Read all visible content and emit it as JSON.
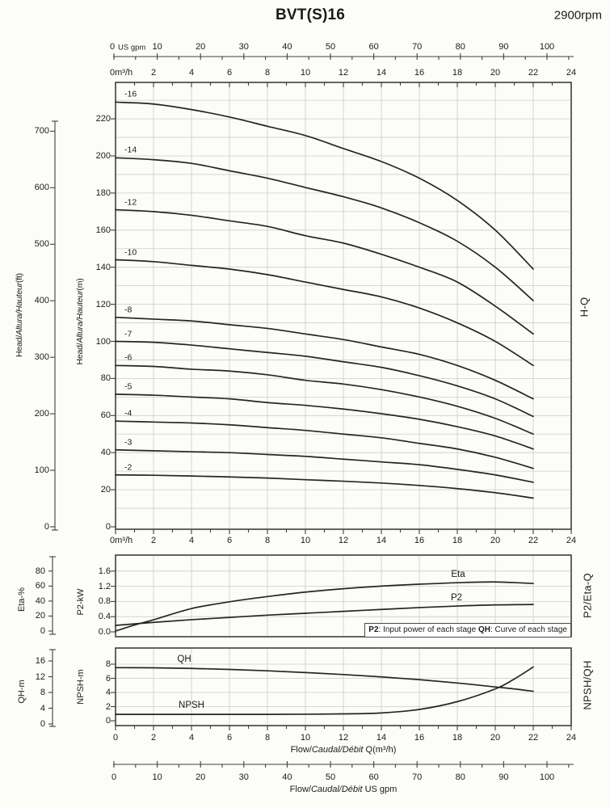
{
  "header": {
    "title": "BVT(S)16",
    "speed": "2900rpm"
  },
  "side_labels": {
    "main": "H-Q",
    "middle": "P2/Eta-Q",
    "bottom": "NPSH/QH"
  },
  "axis_titles": {
    "head_prefix": "Head/",
    "head_italic": "Altura/Hauteur",
    "ft_unit": "(ft)",
    "m_unit": "(m)",
    "eta": "Eta-%",
    "p2": "P2-kW",
    "qh": "QH-m",
    "npsh": "NPSH-m"
  },
  "flow_labels": {
    "prefix": "Flow/",
    "italic": "Caudal/Débit",
    "m3h_unit": " Q(m³/h)",
    "gpm_unit": "  US gpm"
  },
  "axes": {
    "m3h_prefix": "0m³/h",
    "gpm_zero": "0",
    "gpm_unit_inline": "US gpm",
    "m3h_ticks": [
      2,
      4,
      6,
      8,
      10,
      12,
      14,
      16,
      18,
      20,
      22,
      24
    ],
    "m3h_ticks_full": [
      0,
      2,
      4,
      6,
      8,
      10,
      12,
      14,
      16,
      18,
      20,
      22,
      24
    ],
    "gpm_ticks": [
      10,
      20,
      30,
      40,
      50,
      60,
      70,
      80,
      90,
      100
    ],
    "gpm_ticks_full": [
      0,
      10,
      20,
      30,
      40,
      50,
      60,
      70,
      80,
      90,
      100
    ],
    "head_m_ticks": [
      0,
      20,
      40,
      60,
      80,
      100,
      120,
      140,
      160,
      180,
      200,
      220
    ],
    "head_ft_ticks": [
      0,
      100,
      200,
      300,
      400,
      500,
      600,
      700
    ],
    "eta_ticks": [
      0,
      20,
      40,
      60,
      80
    ],
    "p2_ticks": [
      "0.0",
      "0.4",
      "0.8",
      "1.2",
      "1.6"
    ],
    "qh_ticks": [
      0,
      4,
      8,
      12,
      16
    ],
    "npsh_ticks": [
      0,
      2,
      4,
      6,
      8
    ]
  },
  "curve_labels": {
    "eta": "Eta",
    "p2": "P2",
    "qh": "QH",
    "npsh": "NPSH"
  },
  "note": {
    "p2_term": "P2",
    "p2_desc": ": Input power of each stage ",
    "qh_term": "QH",
    "qh_desc": ": Curve of each stage"
  },
  "chart_data": [
    {
      "type": "line",
      "title": "H-Q",
      "xlabel": "Flow/Caudal/Débit Q(m³/h)",
      "xlabel2": "Flow/Caudal/Débit US gpm",
      "ylabel": "Head/Altura/Hauteur(m)",
      "ylabel2": "Head/Altura/Hauteur(ft)",
      "xlim_m3h": [
        0,
        24
      ],
      "xlim_gpm": [
        0,
        106
      ],
      "ylim_m": [
        0,
        235
      ],
      "grid": true,
      "x": [
        0,
        2,
        4,
        6,
        8,
        10,
        12,
        14,
        16,
        18,
        20,
        22
      ],
      "series": [
        {
          "name": "-16",
          "y_m": [
            229,
            228,
            225,
            221,
            216,
            211,
            204,
            197,
            188,
            176,
            160,
            139
          ]
        },
        {
          "name": "-14",
          "y_m": [
            199,
            198,
            196,
            192,
            188,
            183,
            178,
            172,
            164,
            154,
            140,
            122
          ]
        },
        {
          "name": "-12",
          "y_m": [
            171,
            170,
            168,
            165,
            162,
            157,
            153,
            147,
            140,
            132,
            119,
            104
          ]
        },
        {
          "name": "-10",
          "y_m": [
            144,
            143,
            141,
            139,
            136,
            132,
            128,
            124,
            118,
            110,
            100,
            87
          ]
        },
        {
          "name": "-8",
          "y_m": [
            113,
            112,
            111,
            109,
            107,
            104,
            101,
            97,
            93,
            87,
            79,
            69
          ]
        },
        {
          "name": "-7",
          "y_m": [
            100,
            99.5,
            98,
            96,
            94,
            92,
            89,
            86,
            81.5,
            76,
            69,
            59.5
          ]
        },
        {
          "name": "-6",
          "y_m": [
            87,
            86.5,
            85,
            84,
            82,
            79,
            77,
            74,
            70,
            65,
            58.5,
            50
          ]
        },
        {
          "name": "-5",
          "y_m": [
            71.5,
            71,
            70,
            69,
            67,
            65.5,
            63.5,
            61,
            58,
            54,
            49,
            42
          ]
        },
        {
          "name": "-4",
          "y_m": [
            57,
            56.5,
            56,
            55,
            53.5,
            52,
            50,
            48,
            45,
            42,
            37.5,
            31.5
          ]
        },
        {
          "name": "-3",
          "y_m": [
            41.5,
            41,
            40.5,
            40,
            39,
            38,
            36.5,
            35,
            33.5,
            31,
            28,
            24
          ]
        },
        {
          "name": "-2",
          "y_m": [
            28,
            27.8,
            27.4,
            26.9,
            26.3,
            25.4,
            24.6,
            23.6,
            22.3,
            20.6,
            18.4,
            15.5
          ]
        }
      ]
    },
    {
      "type": "line",
      "title": "P2/Eta-Q",
      "ylabel": "Eta-%",
      "ylabel2": "P2-kW",
      "ylim_eta": [
        0,
        86
      ],
      "ylim_p2": [
        0,
        2.0
      ],
      "grid": true,
      "note": "P2: Input power of each stage QH: Curve of each stage",
      "series": [
        {
          "name": "Eta",
          "unit": "%",
          "x": [
            0,
            1,
            2,
            4,
            6,
            8,
            10,
            12,
            14,
            16,
            18,
            20,
            22
          ],
          "y": [
            0,
            8,
            15,
            30,
            39,
            46,
            52,
            56.5,
            60,
            62.5,
            64.5,
            65.5,
            63.5
          ]
        },
        {
          "name": "P2",
          "unit": "kW",
          "x": [
            0,
            2,
            4,
            6,
            8,
            10,
            12,
            14,
            16,
            18,
            20,
            22
          ],
          "y": [
            0.17,
            0.25,
            0.32,
            0.38,
            0.44,
            0.49,
            0.54,
            0.59,
            0.64,
            0.68,
            0.71,
            0.72
          ]
        }
      ]
    },
    {
      "type": "line",
      "title": "NPSH/QH",
      "xlabel": "Flow/Caudal/Débit Q(m³/h)",
      "xlabel2": "Flow/Caudal/Débit US gpm",
      "ylabel": "QH-m",
      "ylabel2": "NPSH-m",
      "ylim_qh": [
        0,
        17
      ],
      "ylim_npsh": [
        0,
        10.3
      ],
      "grid": true,
      "series": [
        {
          "name": "QH",
          "unit": "m",
          "x": [
            0,
            2,
            4,
            6,
            8,
            10,
            12,
            14,
            16,
            18,
            20,
            21,
            22
          ],
          "y": [
            14.3,
            14.25,
            14.1,
            13.85,
            13.5,
            13.05,
            12.55,
            11.95,
            11.25,
            10.4,
            9.4,
            8.9,
            8.3
          ]
        },
        {
          "name": "NPSH",
          "unit": "m",
          "x": [
            0,
            2,
            4,
            6,
            8,
            10,
            12,
            14,
            16,
            18,
            20,
            21,
            22
          ],
          "y": [
            0.9,
            0.9,
            0.9,
            0.9,
            0.9,
            0.92,
            0.97,
            1.1,
            1.6,
            2.7,
            4.5,
            5.9,
            7.6
          ]
        }
      ]
    }
  ]
}
